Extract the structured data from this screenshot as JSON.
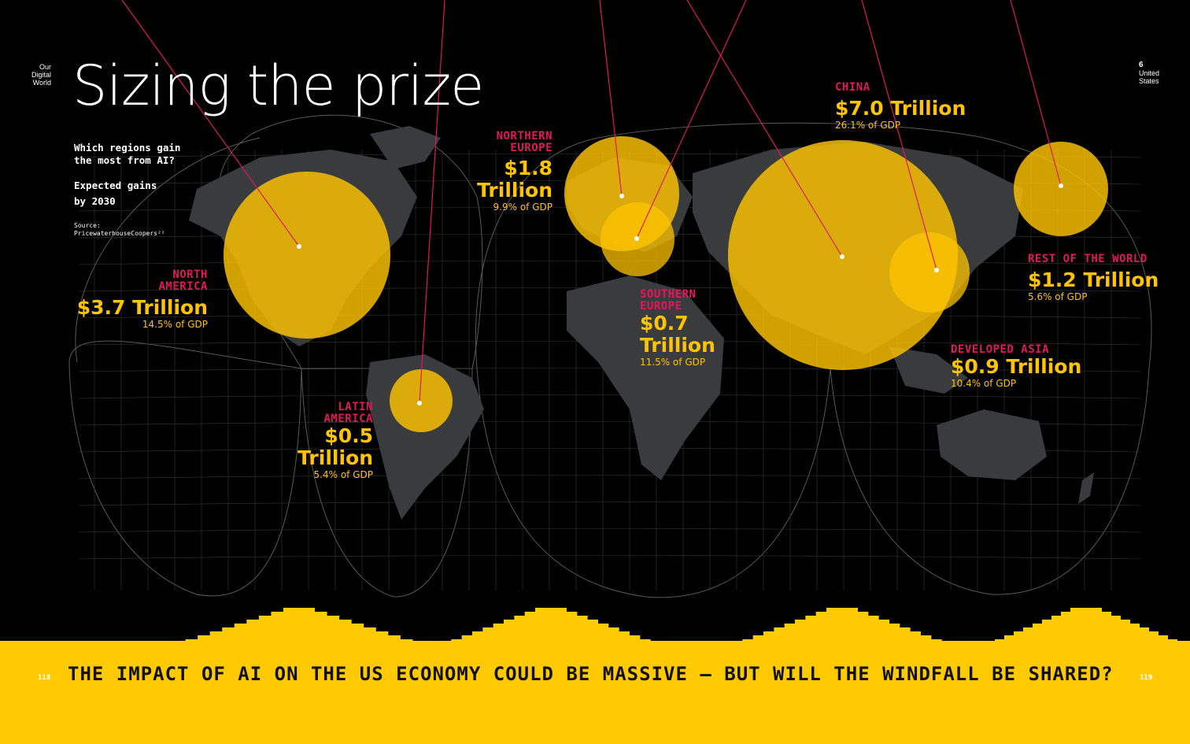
{
  "header": {
    "section_label": [
      "Our",
      "Digital",
      "World"
    ],
    "title": "Sizing the prize",
    "question": [
      "Which regions gain",
      "the most from AI?"
    ],
    "expected": [
      "Expected gains",
      "by 2030"
    ],
    "source": [
      "Source:",
      "PricewaterhouseCoopers²²"
    ],
    "right_label_num": "6",
    "right_label": [
      "United",
      "States"
    ]
  },
  "regions": [
    {
      "name": [
        "NORTH",
        "AMERICA"
      ],
      "value": [
        "$3.7 Trillion"
      ],
      "pct": "14.5% of GDP"
    },
    {
      "name": [
        "LATIN",
        "AMERICA"
      ],
      "value": [
        "$0.5",
        "Trillion"
      ],
      "pct": "5.4% of GDP"
    },
    {
      "name": [
        "NORTHERN",
        "EUROPE"
      ],
      "value": [
        "$1.8",
        "Trillion"
      ],
      "pct": "9.9% of GDP"
    },
    {
      "name": [
        "SOUTHERN",
        "EUROPE"
      ],
      "value": [
        "$0.7",
        "Trillion"
      ],
      "pct": "11.5% of GDP"
    },
    {
      "name": [
        "CHINA"
      ],
      "value": [
        "$7.0 Trillion"
      ],
      "pct": "26.1% of GDP"
    },
    {
      "name": [
        "DEVELOPED ASIA"
      ],
      "value": [
        "$0.9 Trillion"
      ],
      "pct": "10.4% of GDP"
    },
    {
      "name": [
        "REST OF THE WORLD"
      ],
      "value": [
        "$1.2 Trillion"
      ],
      "pct": "5.6% of GDP"
    }
  ],
  "footer": {
    "headline": "THE IMPACT OF AI ON THE US ECONOMY COULD BE MASSIVE – BUT WILL THE WINDFALL BE SHARED?",
    "page_left": "118",
    "page_right": "119"
  },
  "colors": {
    "background": "#000000",
    "accent_yellow": "#ffc400",
    "accent_magenta": "#e0195a",
    "land": "#3a3b3d",
    "graticule": "#3c3c3c"
  }
}
